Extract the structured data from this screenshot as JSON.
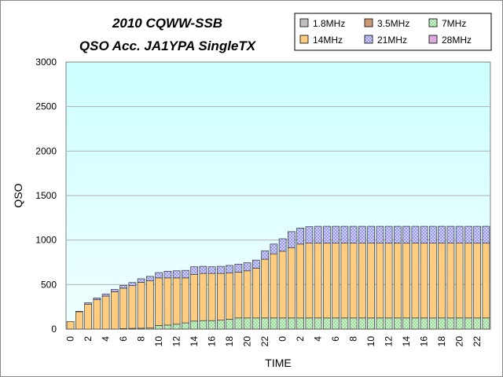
{
  "chart_data": {
    "type": "bar",
    "stacked": true,
    "title_lines": [
      "2010 CQWW-SSB",
      "QSO Acc.  JA1YPA  SingleTX"
    ],
    "xlabel": "TIME",
    "ylabel": "QSO",
    "ylim": [
      0,
      3000
    ],
    "yticks": [
      0,
      500,
      1000,
      1500,
      2000,
      2500,
      3000
    ],
    "grid": true,
    "legend_position": "top-right",
    "categories": [
      "0",
      "1",
      "2",
      "3",
      "4",
      "5",
      "6",
      "7",
      "8",
      "9",
      "10",
      "11",
      "12",
      "13",
      "14",
      "15",
      "16",
      "17",
      "18",
      "19",
      "20",
      "21",
      "22",
      "23",
      "0",
      "1",
      "2",
      "3",
      "4",
      "5",
      "6",
      "7",
      "8",
      "9",
      "10",
      "11",
      "12",
      "13",
      "14",
      "15",
      "16",
      "17",
      "18",
      "19",
      "20",
      "21",
      "22",
      "23"
    ],
    "xtick_labels": [
      "0",
      "2",
      "4",
      "6",
      "8",
      "10",
      "12",
      "14",
      "16",
      "18",
      "20",
      "22",
      "0",
      "2",
      "4",
      "6",
      "8",
      "10",
      "12",
      "14",
      "16",
      "18",
      "20",
      "22"
    ],
    "series": [
      {
        "name": "1.8MHz",
        "color": "#c0c0c0",
        "pattern": "solid",
        "values": [
          0,
          0,
          0,
          0,
          0,
          0,
          0,
          0,
          0,
          0,
          0,
          0,
          0,
          0,
          0,
          0,
          0,
          0,
          0,
          0,
          0,
          0,
          0,
          0,
          0,
          0,
          0,
          0,
          0,
          0,
          0,
          0,
          0,
          0,
          0,
          0,
          0,
          0,
          0,
          0,
          0,
          0,
          0,
          0,
          0,
          0,
          0,
          0
        ]
      },
      {
        "name": "3.5MHz",
        "color": "#cc9977",
        "pattern": "solid",
        "values": [
          0,
          0,
          0,
          0,
          0,
          0,
          0,
          0,
          0,
          0,
          0,
          0,
          0,
          0,
          0,
          0,
          0,
          0,
          0,
          0,
          0,
          0,
          0,
          0,
          0,
          0,
          0,
          0,
          0,
          0,
          0,
          0,
          0,
          0,
          0,
          0,
          0,
          0,
          0,
          0,
          0,
          0,
          0,
          0,
          0,
          0,
          0,
          0
        ]
      },
      {
        "name": "7MHz",
        "color": "#99dd99",
        "pattern": "check",
        "values": [
          0,
          0,
          0,
          0,
          0,
          0,
          5,
          8,
          10,
          12,
          40,
          45,
          55,
          70,
          90,
          95,
          95,
          100,
          110,
          125,
          125,
          125,
          125,
          125,
          125,
          125,
          125,
          125,
          125,
          125,
          125,
          125,
          125,
          125,
          125,
          125,
          125,
          125,
          125,
          125,
          125,
          125,
          125,
          125,
          125,
          125,
          125,
          125
        ]
      },
      {
        "name": "14MHz",
        "color": "#ffcc80",
        "pattern": "solid",
        "values": [
          85,
          195,
          280,
          330,
          370,
          420,
          455,
          480,
          515,
          530,
          535,
          530,
          520,
          505,
          525,
          530,
          530,
          525,
          520,
          515,
          530,
          560,
          660,
          720,
          750,
          790,
          830,
          840,
          840,
          840,
          840,
          840,
          840,
          840,
          840,
          840,
          840,
          840,
          840,
          840,
          840,
          840,
          840,
          840,
          840,
          840,
          840,
          840
        ]
      },
      {
        "name": "21MHz",
        "color": "#9999ee",
        "pattern": "check",
        "values": [
          0,
          5,
          15,
          20,
          25,
          25,
          30,
          35,
          40,
          50,
          60,
          75,
          80,
          85,
          85,
          80,
          75,
          80,
          85,
          90,
          90,
          90,
          95,
          110,
          140,
          180,
          180,
          185,
          190,
          190,
          190,
          190,
          190,
          190,
          190,
          190,
          190,
          190,
          190,
          190,
          190,
          190,
          190,
          190,
          190,
          190,
          190,
          190
        ]
      },
      {
        "name": "28MHz",
        "color": "#ddaadd",
        "pattern": "solid",
        "values": [
          0,
          0,
          0,
          0,
          0,
          0,
          0,
          0,
          0,
          0,
          0,
          0,
          0,
          0,
          0,
          0,
          0,
          0,
          0,
          0,
          0,
          0,
          0,
          0,
          0,
          0,
          0,
          0,
          0,
          0,
          0,
          0,
          0,
          0,
          0,
          0,
          0,
          0,
          0,
          0,
          0,
          0,
          0,
          0,
          0,
          0,
          0,
          0
        ]
      }
    ]
  },
  "colors": {
    "plot_background_top": "#ccffff",
    "plot_background_bottom": "#f0ffff",
    "gridline": "#b0b0b0",
    "frame": "#808080"
  }
}
